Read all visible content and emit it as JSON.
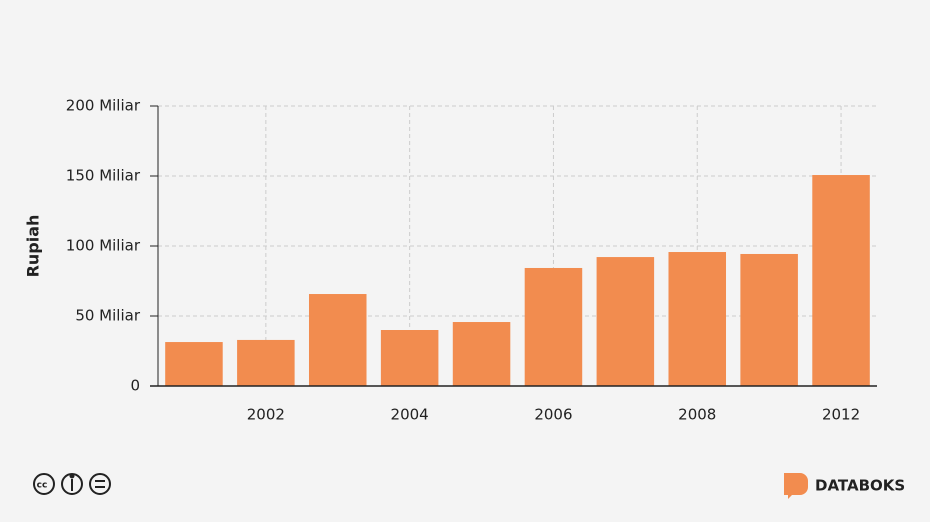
{
  "chart_data": {
    "type": "bar",
    "y_label": "Rupiah",
    "categories": [
      null,
      "2002",
      null,
      "2004",
      null,
      "2006",
      null,
      "2008",
      null,
      "2012"
    ],
    "values": [
      31.4,
      32.9,
      65.7,
      40,
      45.7,
      84.3,
      92.1,
      95.7,
      94.3,
      150.7
    ],
    "color": "#f28c4f",
    "ylim": [
      0,
      200
    ],
    "yticks": [
      0,
      {
        "value": 50,
        "label": "50 Miliar"
      },
      {
        "value": 100,
        "label": "100 Miliar"
      },
      {
        "value": 150,
        "label": "150 Miliar"
      },
      {
        "value": 200,
        "label": "200 Miliar"
      }
    ],
    "grid": true
  },
  "footer": {
    "brand": "DATABOKS"
  }
}
